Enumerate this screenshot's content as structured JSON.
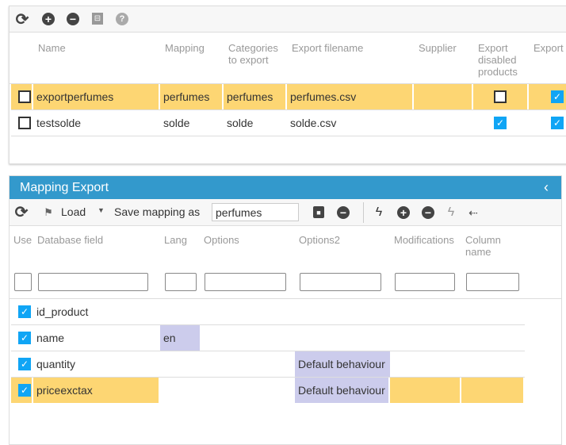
{
  "top_panel": {
    "toolbar": [
      "refresh-icon",
      "add-icon",
      "remove-icon",
      "columns-icon",
      "help-icon"
    ],
    "columns": [
      "Name",
      "Mapping",
      "Categories to export",
      "Export filename",
      "Supplier",
      "Export disabled products",
      "Export combin"
    ],
    "rows": [
      {
        "name": "exportperfumes",
        "mapping": "perfumes",
        "categories": "perfumes",
        "filename": "perfumes.csv",
        "supplier": "",
        "export_disabled": false,
        "export_combinations": true,
        "checked": false,
        "selected": true
      },
      {
        "name": "testsolde",
        "mapping": "solde",
        "categories": "solde",
        "filename": "solde.csv",
        "supplier": "",
        "export_disabled": true,
        "export_combinations": true,
        "checked": false,
        "selected": false
      }
    ]
  },
  "mapping_panel": {
    "title": "Mapping Export",
    "toolbar": {
      "load_label": "Load",
      "save_as_label": "Save mapping as",
      "mapping_name": "perfumes"
    },
    "columns": [
      "Use",
      "Database field",
      "Lang",
      "Options",
      "Options2",
      "Modifications",
      "Column name"
    ],
    "rows": [
      {
        "use": true,
        "field": "id_product",
        "lang": "",
        "options": "",
        "options2": "",
        "modifications": "",
        "column_name": ""
      },
      {
        "use": true,
        "field": "name",
        "lang": "en",
        "options": "",
        "options2": "",
        "modifications": "",
        "column_name": ""
      },
      {
        "use": true,
        "field": "quantity",
        "lang": "",
        "options": "",
        "options2": "Default behaviour",
        "modifications": "",
        "column_name": ""
      },
      {
        "use": true,
        "field": "priceexctax",
        "lang": "",
        "options": "",
        "options2": "Default behaviour",
        "modifications": "",
        "column_name": "",
        "selected": true
      }
    ],
    "colors": {
      "header": "#3399cc",
      "selected": "#fdd673",
      "editable": "#ccccec",
      "checkbox": "#10a5f5"
    }
  }
}
